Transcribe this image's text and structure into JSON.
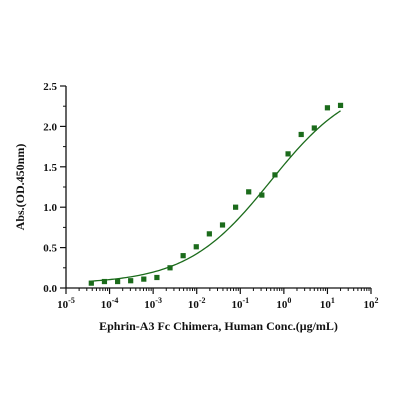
{
  "chart_data": {
    "type": "scatter",
    "title": "",
    "xlabel": "Ephrin-A3 Fc Chimera, Human Conc.(μg/mL)",
    "ylabel": "Abs.(OD.450nm)",
    "x_scale": "log",
    "xlim": [
      1e-05,
      100
    ],
    "ylim": [
      0,
      2.5
    ],
    "x_ticks": [
      {
        "value": 1e-05,
        "base": "10",
        "exp": "-5"
      },
      {
        "value": 0.0001,
        "base": "10",
        "exp": "-4"
      },
      {
        "value": 0.001,
        "base": "10",
        "exp": "-3"
      },
      {
        "value": 0.01,
        "base": "10",
        "exp": "-2"
      },
      {
        "value": 0.1,
        "base": "10",
        "exp": "-1"
      },
      {
        "value": 1,
        "base": "10",
        "exp": "0"
      },
      {
        "value": 10,
        "base": "10",
        "exp": "1"
      },
      {
        "value": 100,
        "base": "10",
        "exp": "2"
      }
    ],
    "y_ticks": [
      {
        "value": 0,
        "label": "0.0"
      },
      {
        "value": 0.5,
        "label": "0.5"
      },
      {
        "value": 1.0,
        "label": "1.0"
      },
      {
        "value": 1.5,
        "label": "1.5"
      },
      {
        "value": 2.0,
        "label": "2.0"
      },
      {
        "value": 2.5,
        "label": "2.5"
      }
    ],
    "series": [
      {
        "marker": "square",
        "color": "#1b6b1b",
        "x": [
          3.81e-05,
          7.63e-05,
          0.000153,
          0.000305,
          0.00061,
          0.00122,
          0.00244,
          0.00488,
          0.00977,
          0.0195,
          0.0391,
          0.0781,
          0.156,
          0.3125,
          0.625,
          1.25,
          2.5,
          5,
          10,
          20
        ],
        "y": [
          0.06,
          0.08,
          0.08,
          0.09,
          0.11,
          0.13,
          0.25,
          0.4,
          0.51,
          0.67,
          0.78,
          1.0,
          1.19,
          1.15,
          1.4,
          1.66,
          1.9,
          1.98,
          2.23,
          2.26
        ]
      }
    ],
    "fit_curve": {
      "type": "4PL",
      "color": "#1b6b1b",
      "bottom": 0.05,
      "top": 2.6,
      "ec50": 0.5,
      "hill": 0.45
    },
    "grid": false,
    "legend": "none"
  }
}
